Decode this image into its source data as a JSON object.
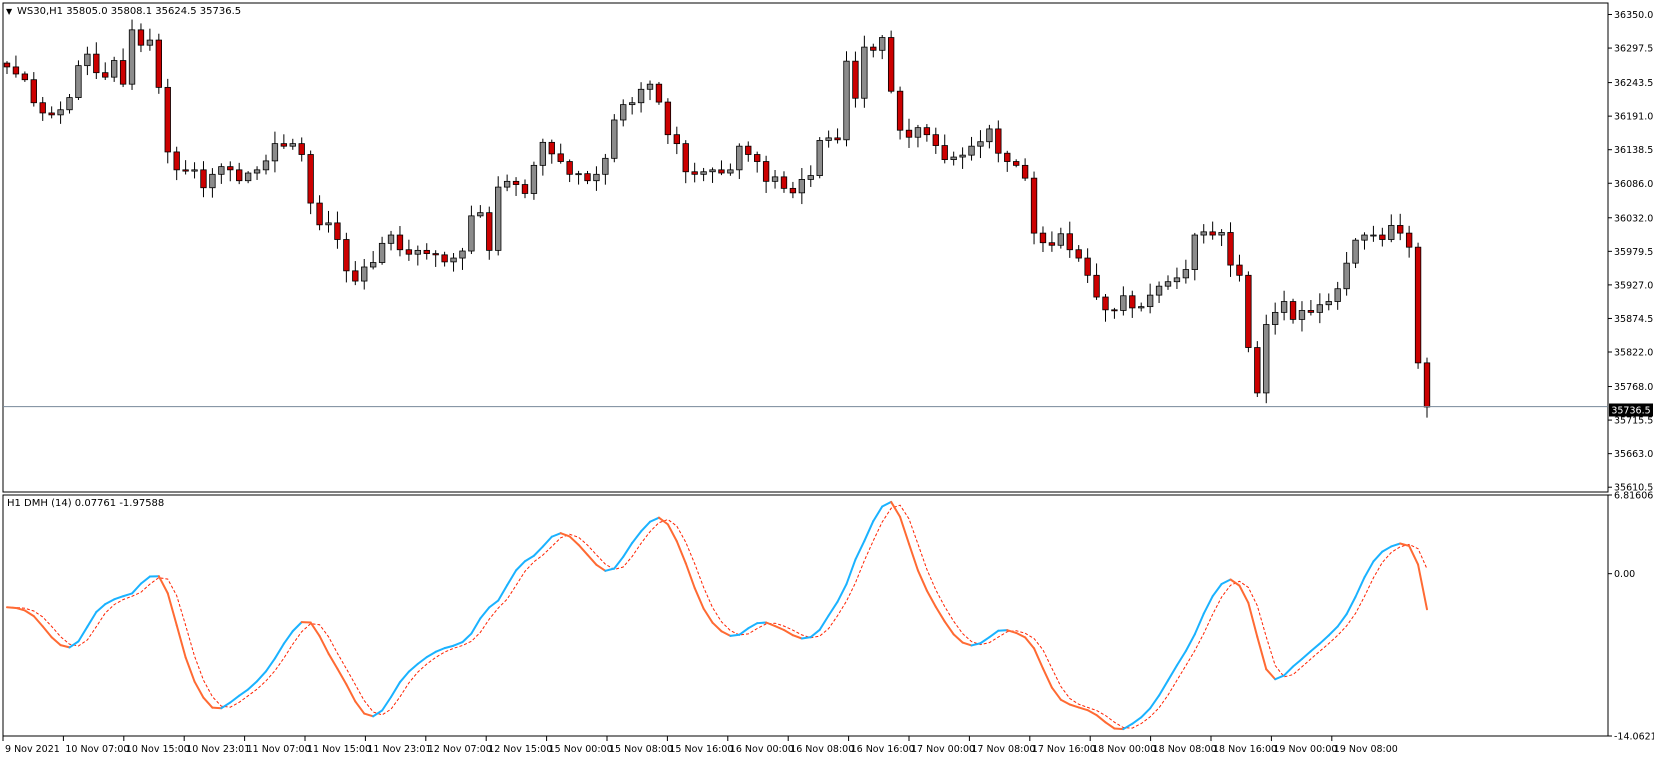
{
  "main_header": {
    "arrow": "▼",
    "text": "WS30,H1  35805.0 35808.1 35624.5 35736.5"
  },
  "indicator_header": {
    "text": "H1 DMH (14) 0.07761 -1.97588"
  },
  "current_price_label": "35736.5",
  "colors": {
    "bull_candle": "#8c8c8c",
    "bear_candle": "#cc0000",
    "wick": "#000000",
    "dmh_main_up": "#1ab2ff",
    "dmh_main_down": "#ff6a33",
    "dmh_signal": "#ff2200",
    "price_line": "#778899",
    "background": "#ffffff"
  },
  "chart_data": [
    {
      "type": "candlestick",
      "symbol": "WS30,H1",
      "y_ticks": [
        "36350.0",
        "36297.5",
        "36243.5",
        "36191.0",
        "36138.5",
        "36086.0",
        "36032.0",
        "35979.5",
        "35927.0",
        "35874.5",
        "35822.0",
        "35768.0",
        "35715.5",
        "35663.0",
        "35610.5"
      ],
      "ylim": [
        35603,
        36368
      ],
      "current_price": 35736.5,
      "x_labels": [
        "9 Nov 2021",
        "10 Nov 07:00",
        "10 Nov 15:00",
        "10 Nov 23:01",
        "11 Nov 07:00",
        "11 Nov 15:00",
        "11 Nov 23:01",
        "12 Nov 07:00",
        "12 Nov 15:00",
        "15 Nov 00:00",
        "15 Nov 08:00",
        "15 Nov 16:00",
        "16 Nov 00:00",
        "16 Nov 08:00",
        "16 Nov 16:00",
        "17 Nov 00:00",
        "17 Nov 08:00",
        "17 Nov 16:00",
        "18 Nov 00:00",
        "18 Nov 08:00",
        "18 Nov 16:00",
        "19 Nov 00:00",
        "19 Nov 08:00"
      ],
      "closes": [
        36268,
        36257,
        36248,
        36212,
        36196,
        36193,
        36201,
        36220,
        36270,
        36288,
        36259,
        36252,
        36278,
        36241,
        36326,
        36302,
        36310,
        36236,
        36135,
        36107,
        36105,
        36107,
        36079,
        36100,
        36112,
        36107,
        36090,
        36102,
        36107,
        36121,
        36148,
        36144,
        36148,
        36131,
        36055,
        36021,
        36024,
        35998,
        35949,
        35933,
        35955,
        35962,
        35992,
        36005,
        35982,
        35975,
        35981,
        35976,
        35974,
        35963,
        35969,
        35980,
        36035,
        36040,
        35981,
        36080,
        36089,
        36084,
        36070,
        36114,
        36150,
        36132,
        36120,
        36100,
        36101,
        36090,
        36100,
        36125,
        36185,
        36209,
        36212,
        36233,
        36241,
        36213,
        36162,
        36148,
        36104,
        36100,
        36104,
        36107,
        36102,
        36107,
        36144,
        36131,
        36120,
        36089,
        36096,
        36078,
        36071,
        36092,
        36098,
        36153,
        36157,
        36154,
        36277,
        36219,
        36299,
        36294,
        36314,
        36230,
        36169,
        36158,
        36173,
        36162,
        36145,
        36123,
        36127,
        36130,
        36144,
        36151,
        36171,
        36133,
        36120,
        36114,
        36094,
        36008,
        35993,
        35989,
        36007,
        35982,
        35969,
        35942,
        35908,
        35888,
        35887,
        35910,
        35891,
        35893,
        35911,
        35925,
        35932,
        35938,
        35951,
        36005,
        36010,
        36005,
        36009,
        35958,
        35942,
        35829,
        35758,
        35865,
        35884,
        35901,
        35873,
        35887,
        35884,
        35896,
        35901,
        35921,
        35961,
        35997,
        36005,
        36005,
        35998,
        36020,
        36008,
        35986,
        35805,
        35736
      ]
    },
    {
      "type": "line",
      "indicator": "H1 DMH (14)",
      "values_printed": [
        0.07761,
        -1.97588
      ],
      "y_ticks": [
        "6.81606",
        "0.00",
        "-14.0621"
      ],
      "ylim": [
        -14.0621,
        6.81606
      ]
    }
  ]
}
